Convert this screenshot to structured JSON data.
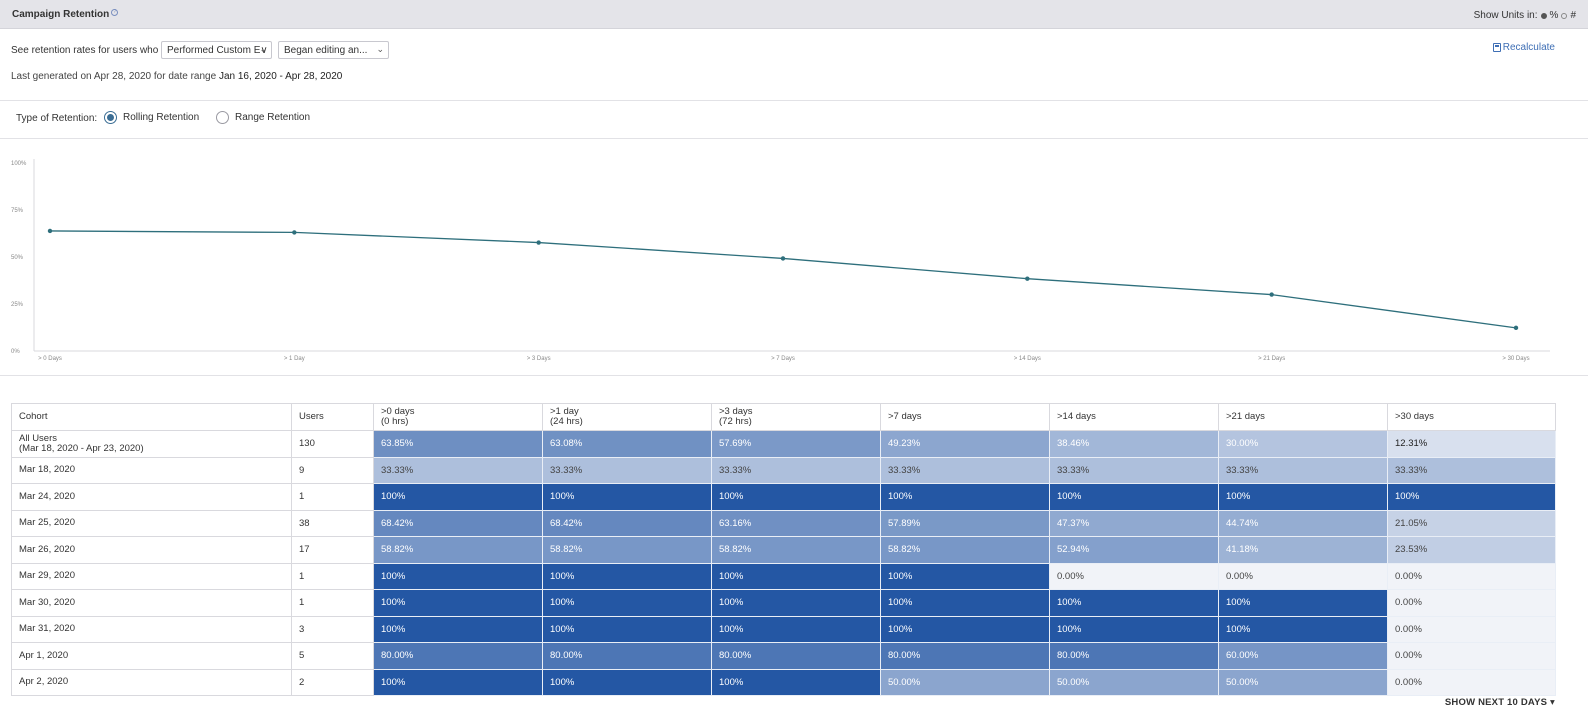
{
  "header": {
    "title": "Campaign Retention",
    "units_label": "Show Units in:",
    "unit_percent": "%",
    "unit_count": "#",
    "selected_unit": "percent"
  },
  "controls": {
    "prompt": "See retention rates for users who",
    "select_event_type": "Performed Custom E∨",
    "select_event": "Began editing an...",
    "recalculate": "Recalculate",
    "generated_prefix": "Last generated on Apr 28, 2020 for date range",
    "generated_range": "Jan 16, 2020 - Apr 28, 2020"
  },
  "retention_type": {
    "label": "Type of Retention:",
    "options": [
      "Rolling Retention",
      "Range Retention"
    ],
    "selected": 0
  },
  "chart_data": {
    "type": "line",
    "categories": [
      "> 0 Days",
      "> 1 Day",
      "> 3 Days",
      "> 7 Days",
      "> 14 Days",
      "> 21 Days",
      "> 30 Days"
    ],
    "series": [
      {
        "name": "All Users",
        "values": [
          63.85,
          63.08,
          57.69,
          49.23,
          38.46,
          30.0,
          12.31
        ]
      }
    ],
    "y_ticks": [
      "100%",
      "75%",
      "50%",
      "25%",
      "0%"
    ],
    "ylim": [
      0,
      100
    ],
    "line_color": "#2e6f7c"
  },
  "table": {
    "headers": [
      {
        "line1": "Cohort",
        "line2": ""
      },
      {
        "line1": "Users",
        "line2": ""
      },
      {
        "line1": ">0 days",
        "line2": "(0 hrs)"
      },
      {
        "line1": ">1 day",
        "line2": "(24 hrs)"
      },
      {
        "line1": ">3 days",
        "line2": "(72 hrs)"
      },
      {
        "line1": ">7 days",
        "line2": ""
      },
      {
        "line1": ">14 days",
        "line2": ""
      },
      {
        "line1": ">21 days",
        "line2": ""
      },
      {
        "line1": ">30 days",
        "line2": ""
      }
    ],
    "rows": [
      {
        "cohort": "All Users",
        "cohort_sub": "(Mar 18, 2020 - Apr 23, 2020)",
        "users": "130",
        "values": [
          "63.85%",
          "63.08%",
          "57.69%",
          "49.23%",
          "38.46%",
          "30.00%",
          "12.31%"
        ],
        "levels": [
          63.85,
          63.08,
          57.69,
          49.23,
          38.46,
          30.0,
          12.31
        ]
      },
      {
        "cohort": "Mar 18, 2020",
        "cohort_sub": "",
        "users": "9",
        "values": [
          "33.33%",
          "33.33%",
          "33.33%",
          "33.33%",
          "33.33%",
          "33.33%",
          "33.33%"
        ],
        "levels": [
          33.33,
          33.33,
          33.33,
          33.33,
          33.33,
          33.33,
          33.33
        ]
      },
      {
        "cohort": "Mar 24, 2020",
        "cohort_sub": "",
        "users": "1",
        "values": [
          "100%",
          "100%",
          "100%",
          "100%",
          "100%",
          "100%",
          "100%"
        ],
        "levels": [
          100,
          100,
          100,
          100,
          100,
          100,
          100
        ]
      },
      {
        "cohort": "Mar 25, 2020",
        "cohort_sub": "",
        "users": "38",
        "values": [
          "68.42%",
          "68.42%",
          "63.16%",
          "57.89%",
          "47.37%",
          "44.74%",
          "21.05%"
        ],
        "levels": [
          68.42,
          68.42,
          63.16,
          57.89,
          47.37,
          44.74,
          21.05
        ]
      },
      {
        "cohort": "Mar 26, 2020",
        "cohort_sub": "",
        "users": "17",
        "values": [
          "58.82%",
          "58.82%",
          "58.82%",
          "58.82%",
          "52.94%",
          "41.18%",
          "23.53%"
        ],
        "levels": [
          58.82,
          58.82,
          58.82,
          58.82,
          52.94,
          41.18,
          23.53
        ]
      },
      {
        "cohort": "Mar 29, 2020",
        "cohort_sub": "",
        "users": "1",
        "values": [
          "100%",
          "100%",
          "100%",
          "100%",
          "0.00%",
          "0.00%",
          "0.00%"
        ],
        "levels": [
          100,
          100,
          100,
          100,
          0,
          0,
          0
        ]
      },
      {
        "cohort": "Mar 30, 2020",
        "cohort_sub": "",
        "users": "1",
        "values": [
          "100%",
          "100%",
          "100%",
          "100%",
          "100%",
          "100%",
          "0.00%"
        ],
        "levels": [
          100,
          100,
          100,
          100,
          100,
          100,
          0
        ]
      },
      {
        "cohort": "Mar 31, 2020",
        "cohort_sub": "",
        "users": "3",
        "values": [
          "100%",
          "100%",
          "100%",
          "100%",
          "100%",
          "100%",
          "0.00%"
        ],
        "levels": [
          100,
          100,
          100,
          100,
          100,
          100,
          0
        ]
      },
      {
        "cohort": "Apr 1, 2020",
        "cohort_sub": "",
        "users": "5",
        "values": [
          "80.00%",
          "80.00%",
          "80.00%",
          "80.00%",
          "80.00%",
          "60.00%",
          "0.00%"
        ],
        "levels": [
          80,
          80,
          80,
          80,
          80,
          60,
          0
        ]
      },
      {
        "cohort": "Apr 2, 2020",
        "cohort_sub": "",
        "users": "2",
        "values": [
          "100%",
          "100%",
          "100%",
          "50.00%",
          "50.00%",
          "50.00%",
          "0.00%"
        ],
        "levels": [
          100,
          100,
          100,
          50,
          50,
          50,
          0
        ]
      }
    ]
  },
  "footer": {
    "show_next": "SHOW NEXT 10 DAYS"
  },
  "colors": {
    "heat_low": "#f1f3f8",
    "heat_high": "#2457a4"
  }
}
